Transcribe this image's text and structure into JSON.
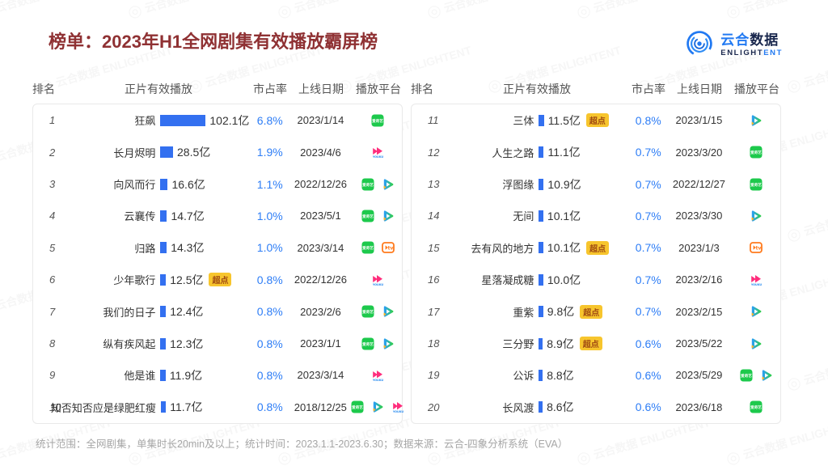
{
  "header": {
    "title": "榜单：2023年H1全网剧集有效播放霸屏榜",
    "logo": {
      "brand_cn_1": "云合",
      "brand_cn_2": "数据",
      "brand_en_1": "ENLIGHT",
      "brand_en_2": "ENT"
    }
  },
  "watermark_text": "云合数据 ENLIGHTENT",
  "footer": {
    "note": "统计范围：全网剧集，单集时长20min及以上；统计时间：2023.1.1-2023.6.30；数据来源：云合-四象分析系统（EVA）"
  },
  "colors": {
    "title_red": "#8f3133",
    "bar_blue": "#3370f0",
    "share_blue": "#2d7df6",
    "badge_bg": "#f7c52d",
    "badge_text": "#a04a12",
    "brand_blue": "#2179F2",
    "brand_dark": "#18264C",
    "iqiyi_green": "#1dc94c",
    "youku_pink": "#ff2d7c",
    "mgtv_orange": "#ff7a1c"
  },
  "chart_data": {
    "type": "bar",
    "title": "榜单：2023年H1全网剧集有效播放霸屏榜",
    "columns": [
      "排名",
      "正片有效播放",
      "市占率",
      "上线日期",
      "播放平台"
    ],
    "unit": "亿",
    "max_value": 102.1,
    "badge_label": "超点",
    "platform_names": {
      "iqiyi": "爱奇艺",
      "tencent": "腾讯视频",
      "youku": "优酷",
      "mgtv": "芒果TV"
    },
    "rows": [
      {
        "rank": "1",
        "title": "狂飙",
        "value": 102.1,
        "value_label": "102.1亿",
        "share": "6.8%",
        "date": "2023/1/14",
        "platforms": [
          "iqiyi"
        ],
        "badge": ""
      },
      {
        "rank": "2",
        "title": "长月烬明",
        "value": 28.5,
        "value_label": "28.5亿",
        "share": "1.9%",
        "date": "2023/4/6",
        "platforms": [
          "youku"
        ],
        "badge": ""
      },
      {
        "rank": "3",
        "title": "向风而行",
        "value": 16.6,
        "value_label": "16.6亿",
        "share": "1.1%",
        "date": "2022/12/26",
        "platforms": [
          "iqiyi",
          "tencent"
        ],
        "badge": ""
      },
      {
        "rank": "4",
        "title": "云襄传",
        "value": 14.7,
        "value_label": "14.7亿",
        "share": "1.0%",
        "date": "2023/5/1",
        "platforms": [
          "iqiyi",
          "tencent"
        ],
        "badge": ""
      },
      {
        "rank": "5",
        "title": "归路",
        "value": 14.3,
        "value_label": "14.3亿",
        "share": "1.0%",
        "date": "2023/3/14",
        "platforms": [
          "iqiyi",
          "mgtv"
        ],
        "badge": ""
      },
      {
        "rank": "6",
        "title": "少年歌行",
        "value": 12.5,
        "value_label": "12.5亿",
        "share": "0.8%",
        "date": "2022/12/26",
        "platforms": [
          "youku"
        ],
        "badge": "超点"
      },
      {
        "rank": "7",
        "title": "我们的日子",
        "value": 12.4,
        "value_label": "12.4亿",
        "share": "0.8%",
        "date": "2023/2/6",
        "platforms": [
          "iqiyi",
          "tencent"
        ],
        "badge": ""
      },
      {
        "rank": "8",
        "title": "纵有疾风起",
        "value": 12.3,
        "value_label": "12.3亿",
        "share": "0.8%",
        "date": "2023/1/1",
        "platforms": [
          "iqiyi",
          "tencent"
        ],
        "badge": ""
      },
      {
        "rank": "9",
        "title": "他是谁",
        "value": 11.9,
        "value_label": "11.9亿",
        "share": "0.8%",
        "date": "2023/3/14",
        "platforms": [
          "youku"
        ],
        "badge": ""
      },
      {
        "rank": "10",
        "title": "知否知否应是绿肥红瘦",
        "value": 11.7,
        "value_label": "11.7亿",
        "share": "0.8%",
        "date": "2018/12/25",
        "platforms": [
          "iqiyi",
          "tencent",
          "youku"
        ],
        "badge": ""
      },
      {
        "rank": "11",
        "title": "三体",
        "value": 11.5,
        "value_label": "11.5亿",
        "share": "0.8%",
        "date": "2023/1/15",
        "platforms": [
          "tencent"
        ],
        "badge": "超点"
      },
      {
        "rank": "12",
        "title": "人生之路",
        "value": 11.1,
        "value_label": "11.1亿",
        "share": "0.7%",
        "date": "2023/3/20",
        "platforms": [
          "iqiyi"
        ],
        "badge": ""
      },
      {
        "rank": "13",
        "title": "浮图缘",
        "value": 10.9,
        "value_label": "10.9亿",
        "share": "0.7%",
        "date": "2022/12/27",
        "platforms": [
          "iqiyi"
        ],
        "badge": ""
      },
      {
        "rank": "14",
        "title": "无间",
        "value": 10.1,
        "value_label": "10.1亿",
        "share": "0.7%",
        "date": "2023/3/30",
        "platforms": [
          "tencent"
        ],
        "badge": ""
      },
      {
        "rank": "15",
        "title": "去有风的地方",
        "value": 10.1,
        "value_label": "10.1亿",
        "share": "0.7%",
        "date": "2023/1/3",
        "platforms": [
          "mgtv"
        ],
        "badge": "超点"
      },
      {
        "rank": "16",
        "title": "星落凝成糖",
        "value": 10.0,
        "value_label": "10.0亿",
        "share": "0.7%",
        "date": "2023/2/16",
        "platforms": [
          "youku"
        ],
        "badge": ""
      },
      {
        "rank": "17",
        "title": "重紫",
        "value": 9.8,
        "value_label": "9.8亿",
        "share": "0.7%",
        "date": "2023/2/15",
        "platforms": [
          "tencent"
        ],
        "badge": "超点"
      },
      {
        "rank": "18",
        "title": "三分野",
        "value": 8.9,
        "value_label": "8.9亿",
        "share": "0.6%",
        "date": "2023/5/22",
        "platforms": [
          "tencent"
        ],
        "badge": "超点"
      },
      {
        "rank": "19",
        "title": "公诉",
        "value": 8.8,
        "value_label": "8.8亿",
        "share": "0.6%",
        "date": "2023/5/29",
        "platforms": [
          "iqiyi",
          "tencent"
        ],
        "badge": ""
      },
      {
        "rank": "20",
        "title": "长风渡",
        "value": 8.6,
        "value_label": "8.6亿",
        "share": "0.6%",
        "date": "2023/6/18",
        "platforms": [
          "iqiyi"
        ],
        "badge": ""
      }
    ]
  }
}
